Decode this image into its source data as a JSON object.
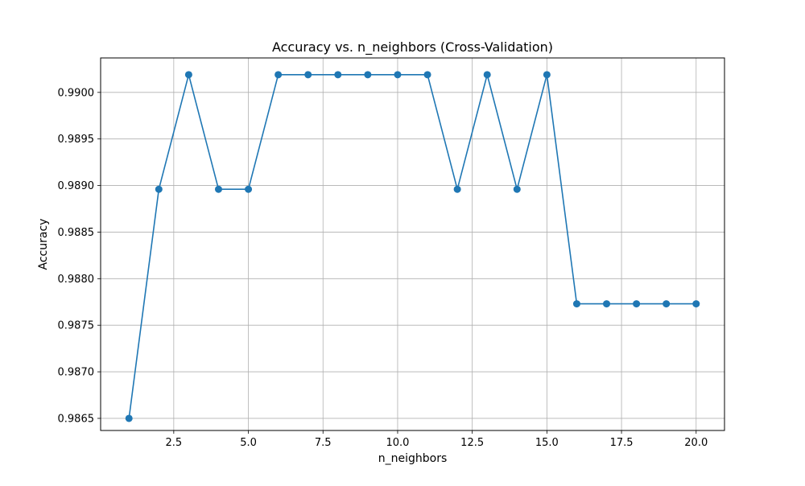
{
  "chart_data": {
    "type": "line",
    "title": "Accuracy vs. n_neighbors (Cross-Validation)",
    "xlabel": "n_neighbors",
    "ylabel": "Accuracy",
    "x": [
      1,
      2,
      3,
      4,
      5,
      6,
      7,
      8,
      9,
      10,
      11,
      12,
      13,
      14,
      15,
      16,
      17,
      18,
      19,
      20
    ],
    "series": [
      {
        "values": [
          0.9865,
          0.98896,
          0.99019,
          0.98896,
          0.98896,
          0.99019,
          0.99019,
          0.99019,
          0.99019,
          0.99019,
          0.99019,
          0.98896,
          0.99019,
          0.98896,
          0.99019,
          0.98773,
          0.98773,
          0.98773,
          0.98773,
          0.98773
        ],
        "color": "#1f77b4",
        "marker": "circle"
      }
    ],
    "xlim": [
      0.05,
      20.95
    ],
    "ylim": [
      0.98637,
      0.99037
    ],
    "xticks": [
      2.5,
      5.0,
      7.5,
      10.0,
      12.5,
      15.0,
      17.5,
      20.0
    ],
    "xtick_labels": [
      "2.5",
      "5.0",
      "7.5",
      "10.0",
      "12.5",
      "15.0",
      "17.5",
      "20.0"
    ],
    "yticks": [
      0.9865,
      0.987,
      0.9875,
      0.988,
      0.9885,
      0.989,
      0.9895,
      0.99
    ],
    "ytick_labels": [
      "0.9865",
      "0.9870",
      "0.9875",
      "0.9880",
      "0.9885",
      "0.9890",
      "0.9895",
      "0.9900"
    ],
    "grid": true,
    "grid_color": "#b0b0b0"
  }
}
